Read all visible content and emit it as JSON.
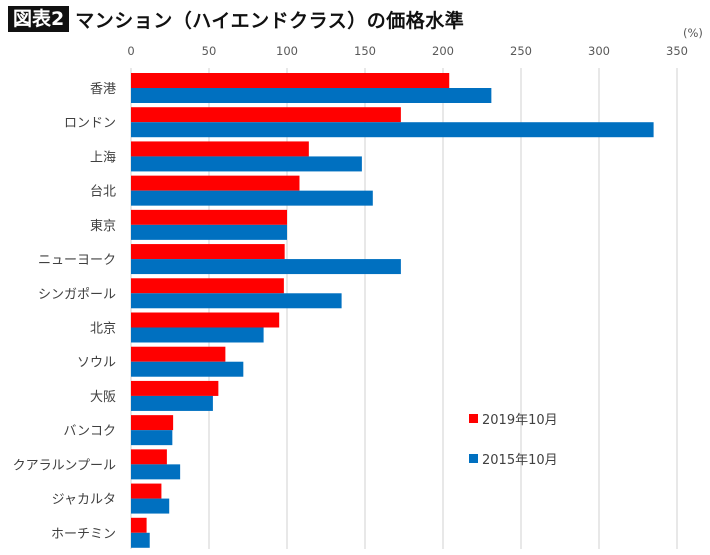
{
  "header": {
    "badge": "図表2",
    "title": "マンション（ハイエンドクラス）の価格水準"
  },
  "chart_data": {
    "type": "bar",
    "orientation": "horizontal",
    "title": "マンション（ハイエンドクラス）の価格水準",
    "xlabel": "",
    "ylabel": "",
    "unit_label": "(%)",
    "xlim": [
      0,
      350
    ],
    "xticks": [
      0,
      50,
      100,
      150,
      200,
      250,
      300,
      350
    ],
    "xtick_labels": [
      "0",
      "50",
      "100",
      "150",
      "200",
      "250",
      "300",
      "350"
    ],
    "grid": true,
    "legend_position": "bottom-right-inside",
    "categories": [
      "香港",
      "ロンドン",
      "上海",
      "台北",
      "東京",
      "ニューヨーク",
      "シンガポール",
      "北京",
      "ソウル",
      "大阪",
      "バンコク",
      "クアラルンプール",
      "ジャカルタ",
      "ホーチミン"
    ],
    "series": [
      {
        "name": "2019年10月",
        "color": "#ff0000",
        "values": [
          204,
          173,
          114,
          108,
          100,
          98.5,
          98,
          95,
          60.5,
          56,
          27,
          23,
          19.5,
          10
        ]
      },
      {
        "name": "2015年10月",
        "color": "#0070c0",
        "values": [
          231,
          335,
          148,
          155,
          100,
          173,
          135,
          85,
          72,
          52.5,
          26.5,
          31.5,
          24.5,
          12
        ]
      }
    ]
  }
}
